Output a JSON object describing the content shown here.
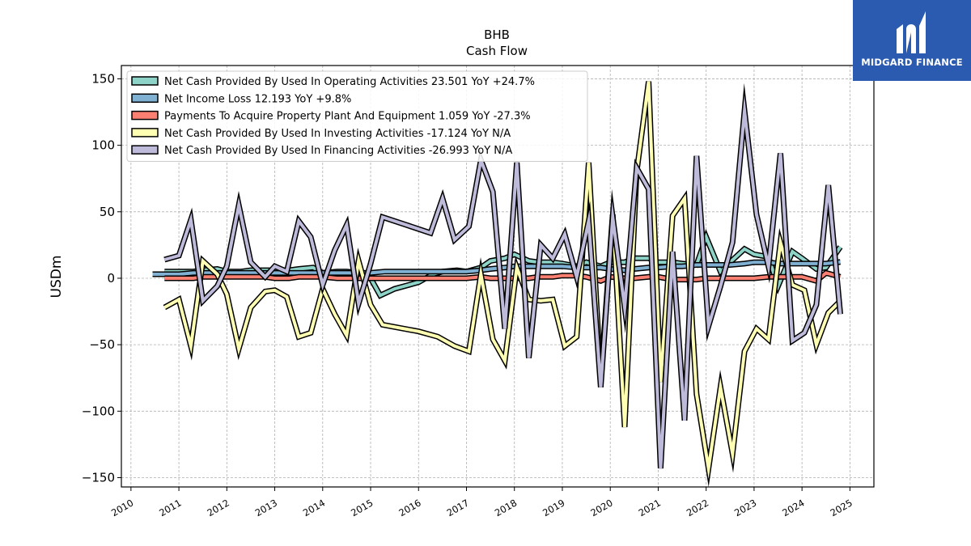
{
  "brand": {
    "name": "MIDGARD FINANCE",
    "bg_color": "#2b5bb0"
  },
  "chart_data": {
    "type": "line",
    "title": "BHB",
    "subtitle": "Cash Flow",
    "ylabel": "USDm",
    "xlabel": "",
    "xlim": [
      2009.8,
      2025.5
    ],
    "ylim": [
      -157,
      160
    ],
    "x_ticks": [
      2010,
      2011,
      2012,
      2013,
      2014,
      2015,
      2016,
      2017,
      2018,
      2019,
      2020,
      2021,
      2022,
      2023,
      2024,
      2025
    ],
    "y_ticks": [
      150,
      100,
      50,
      0,
      -50,
      -100,
      -150
    ],
    "y_tick_labels": [
      "150",
      "100",
      "50",
      "0",
      "−50",
      "−100",
      "−150"
    ],
    "grid": true,
    "legend_position": "top-left",
    "series": [
      {
        "name": "Net Cash Provided By Used In Operating Activities",
        "legend_label": "Net Cash Provided By Used In Operating Activities  23.501 YoY +24.7%",
        "color": "#8dd3c7",
        "points": [
          [
            2010.7,
            5
          ],
          [
            2011.0,
            5
          ],
          [
            2011.3,
            5
          ],
          [
            2011.5,
            6
          ],
          [
            2011.8,
            7
          ],
          [
            2012.0,
            5
          ],
          [
            2012.3,
            5
          ],
          [
            2012.5,
            6
          ],
          [
            2012.8,
            6
          ],
          [
            2013.0,
            6
          ],
          [
            2013.3,
            6
          ],
          [
            2013.5,
            7
          ],
          [
            2013.8,
            8
          ],
          [
            2014.0,
            4
          ],
          [
            2014.3,
            5
          ],
          [
            2014.5,
            5
          ],
          [
            2014.8,
            4
          ],
          [
            2015.0,
            0
          ],
          [
            2015.2,
            -13
          ],
          [
            2015.5,
            -8
          ],
          [
            2015.8,
            -5
          ],
          [
            2016.0,
            -3
          ],
          [
            2016.3,
            3
          ],
          [
            2016.5,
            5
          ],
          [
            2016.8,
            6
          ],
          [
            2017.0,
            5
          ],
          [
            2017.3,
            8
          ],
          [
            2017.5,
            13
          ],
          [
            2017.8,
            15
          ],
          [
            2018.0,
            18
          ],
          [
            2018.3,
            13
          ],
          [
            2018.5,
            12
          ],
          [
            2018.8,
            12
          ],
          [
            2019.0,
            11
          ],
          [
            2019.3,
            9
          ],
          [
            2019.5,
            12
          ],
          [
            2019.8,
            9
          ],
          [
            2020.0,
            12
          ],
          [
            2020.3,
            12
          ],
          [
            2020.5,
            15
          ],
          [
            2020.8,
            15
          ],
          [
            2021.0,
            12
          ],
          [
            2021.3,
            12
          ],
          [
            2021.5,
            11
          ],
          [
            2021.8,
            10
          ],
          [
            2022.0,
            31
          ],
          [
            2022.3,
            5
          ],
          [
            2022.5,
            12
          ],
          [
            2022.8,
            22
          ],
          [
            2023.0,
            18
          ],
          [
            2023.3,
            16
          ],
          [
            2023.5,
            -6
          ],
          [
            2023.8,
            20
          ],
          [
            2024.0,
            15
          ],
          [
            2024.3,
            7
          ],
          [
            2024.5,
            8
          ],
          [
            2024.8,
            23.5
          ]
        ]
      },
      {
        "name": "Net Income Loss",
        "legend_label": "Net Income Loss  12.193 YoY +9.8%",
        "color": "#80b1d3",
        "points": [
          [
            2010.45,
            3
          ],
          [
            2010.7,
            3
          ],
          [
            2011.0,
            3
          ],
          [
            2011.3,
            4
          ],
          [
            2011.5,
            4
          ],
          [
            2011.8,
            4
          ],
          [
            2012.0,
            4
          ],
          [
            2012.3,
            4
          ],
          [
            2012.5,
            4
          ],
          [
            2012.8,
            4
          ],
          [
            2013.0,
            4
          ],
          [
            2013.3,
            4
          ],
          [
            2013.5,
            4
          ],
          [
            2013.8,
            4
          ],
          [
            2014.0,
            4
          ],
          [
            2014.3,
            4
          ],
          [
            2014.5,
            4
          ],
          [
            2014.8,
            4
          ],
          [
            2015.0,
            4
          ],
          [
            2015.3,
            5
          ],
          [
            2015.5,
            5
          ],
          [
            2015.8,
            5
          ],
          [
            2016.0,
            5
          ],
          [
            2016.3,
            5
          ],
          [
            2016.5,
            5
          ],
          [
            2016.8,
            5
          ],
          [
            2017.0,
            5
          ],
          [
            2017.3,
            6
          ],
          [
            2017.5,
            7
          ],
          [
            2017.8,
            8
          ],
          [
            2018.0,
            9
          ],
          [
            2018.3,
            9
          ],
          [
            2018.5,
            9
          ],
          [
            2018.8,
            9
          ],
          [
            2019.0,
            9
          ],
          [
            2019.3,
            8
          ],
          [
            2019.5,
            8
          ],
          [
            2019.8,
            8
          ],
          [
            2020.0,
            7
          ],
          [
            2020.3,
            6
          ],
          [
            2020.5,
            7
          ],
          [
            2020.8,
            8
          ],
          [
            2021.0,
            8
          ],
          [
            2021.3,
            9
          ],
          [
            2021.5,
            9
          ],
          [
            2021.8,
            10
          ],
          [
            2022.0,
            10
          ],
          [
            2022.3,
            10
          ],
          [
            2022.5,
            10
          ],
          [
            2022.8,
            11
          ],
          [
            2023.0,
            12
          ],
          [
            2023.3,
            12
          ],
          [
            2023.5,
            11
          ],
          [
            2023.8,
            11
          ],
          [
            2024.0,
            11
          ],
          [
            2024.3,
            11
          ],
          [
            2024.5,
            11
          ],
          [
            2024.8,
            12.2
          ]
        ]
      },
      {
        "name": "Payments To Acquire Property Plant And Equipment",
        "legend_label": "Payments To Acquire Property Plant And Equipment  1.059 YoY -27.3%",
        "color": "#fb8072",
        "points": [
          [
            2010.7,
            0
          ],
          [
            2011.0,
            0
          ],
          [
            2011.3,
            0
          ],
          [
            2011.5,
            1
          ],
          [
            2011.8,
            1
          ],
          [
            2012.0,
            1
          ],
          [
            2012.3,
            1
          ],
          [
            2012.5,
            1
          ],
          [
            2012.8,
            1
          ],
          [
            2013.0,
            0
          ],
          [
            2013.3,
            0
          ],
          [
            2013.5,
            1
          ],
          [
            2013.8,
            1
          ],
          [
            2014.0,
            1
          ],
          [
            2014.3,
            0
          ],
          [
            2014.5,
            0
          ],
          [
            2014.8,
            0
          ],
          [
            2015.0,
            0
          ],
          [
            2015.3,
            0
          ],
          [
            2015.5,
            0
          ],
          [
            2015.8,
            0
          ],
          [
            2016.0,
            0
          ],
          [
            2016.3,
            0
          ],
          [
            2016.5,
            0
          ],
          [
            2016.8,
            0
          ],
          [
            2017.0,
            0
          ],
          [
            2017.3,
            1
          ],
          [
            2017.5,
            0
          ],
          [
            2017.8,
            0
          ],
          [
            2018.0,
            0
          ],
          [
            2018.3,
            0
          ],
          [
            2018.5,
            1
          ],
          [
            2018.8,
            1
          ],
          [
            2019.0,
            2
          ],
          [
            2019.3,
            2
          ],
          [
            2019.5,
            1
          ],
          [
            2019.8,
            -2
          ],
          [
            2020.0,
            1
          ],
          [
            2020.3,
            0
          ],
          [
            2020.5,
            0
          ],
          [
            2020.8,
            1
          ],
          [
            2021.0,
            1
          ],
          [
            2021.3,
            -1
          ],
          [
            2021.5,
            -1
          ],
          [
            2021.8,
            -1
          ],
          [
            2022.0,
            0
          ],
          [
            2022.3,
            0
          ],
          [
            2022.5,
            0
          ],
          [
            2022.8,
            0
          ],
          [
            2023.0,
            0
          ],
          [
            2023.3,
            1
          ],
          [
            2023.5,
            1
          ],
          [
            2023.8,
            1
          ],
          [
            2024.0,
            1
          ],
          [
            2024.3,
            -2
          ],
          [
            2024.5,
            4
          ],
          [
            2024.8,
            1.06
          ]
        ]
      },
      {
        "name": "Net Cash Provided By Used In Investing Activities",
        "legend_label": "Net Cash Provided By Used In Investing Activities  -17.124 YoY N/A",
        "color": "#ffffb3",
        "points": [
          [
            2010.7,
            -22
          ],
          [
            2011.0,
            -16
          ],
          [
            2011.25,
            -51
          ],
          [
            2011.5,
            13
          ],
          [
            2011.8,
            3
          ],
          [
            2012.0,
            -12
          ],
          [
            2012.25,
            -53
          ],
          [
            2012.5,
            -22
          ],
          [
            2012.8,
            -10
          ],
          [
            2013.0,
            -9
          ],
          [
            2013.25,
            -14
          ],
          [
            2013.5,
            -44
          ],
          [
            2013.75,
            -41
          ],
          [
            2014.0,
            -8
          ],
          [
            2014.25,
            -27
          ],
          [
            2014.5,
            -43
          ],
          [
            2014.75,
            13
          ],
          [
            2015.0,
            -20
          ],
          [
            2015.25,
            -35
          ],
          [
            2016.0,
            -40
          ],
          [
            2016.4,
            -44
          ],
          [
            2016.75,
            -51
          ],
          [
            2017.05,
            -55
          ],
          [
            2017.3,
            3
          ],
          [
            2017.55,
            -46
          ],
          [
            2017.8,
            -62
          ],
          [
            2018.05,
            8
          ],
          [
            2018.3,
            -16
          ],
          [
            2018.55,
            -17
          ],
          [
            2018.8,
            -16
          ],
          [
            2019.05,
            -51
          ],
          [
            2019.3,
            -44
          ],
          [
            2019.55,
            87
          ],
          [
            2019.8,
            -76
          ],
          [
            2020.05,
            48
          ],
          [
            2020.3,
            -112
          ],
          [
            2020.55,
            80
          ],
          [
            2020.8,
            148
          ],
          [
            2021.05,
            -78
          ],
          [
            2021.3,
            47
          ],
          [
            2021.55,
            60
          ],
          [
            2021.8,
            -87
          ],
          [
            2022.05,
            -143
          ],
          [
            2022.3,
            -82
          ],
          [
            2022.55,
            -132
          ],
          [
            2022.8,
            -55
          ],
          [
            2023.05,
            -38
          ],
          [
            2023.3,
            -46
          ],
          [
            2023.55,
            27
          ],
          [
            2023.8,
            -5
          ],
          [
            2024.05,
            -9
          ],
          [
            2024.3,
            -50
          ],
          [
            2024.55,
            -26
          ],
          [
            2024.8,
            -17.1
          ]
        ]
      },
      {
        "name": "Net Cash Provided By Used In Financing Activities",
        "legend_label": "Net Cash Provided By Used In Financing Activities  -26.993 YoY N/A",
        "color": "#bebada",
        "points": [
          [
            2010.7,
            14
          ],
          [
            2011.0,
            17
          ],
          [
            2011.25,
            44
          ],
          [
            2011.5,
            -17
          ],
          [
            2011.8,
            -6
          ],
          [
            2012.0,
            9
          ],
          [
            2012.25,
            55
          ],
          [
            2012.5,
            12
          ],
          [
            2012.8,
            1
          ],
          [
            2013.0,
            9
          ],
          [
            2013.25,
            5
          ],
          [
            2013.5,
            43
          ],
          [
            2013.75,
            31
          ],
          [
            2014.0,
            -5
          ],
          [
            2014.25,
            21
          ],
          [
            2014.5,
            40
          ],
          [
            2014.75,
            -19
          ],
          [
            2015.0,
            11
          ],
          [
            2015.25,
            46
          ],
          [
            2015.75,
            40
          ],
          [
            2016.25,
            34
          ],
          [
            2016.5,
            60
          ],
          [
            2016.75,
            29
          ],
          [
            2017.05,
            39
          ],
          [
            2017.3,
            89
          ],
          [
            2017.55,
            65
          ],
          [
            2017.8,
            -38
          ],
          [
            2018.05,
            87
          ],
          [
            2018.3,
            -60
          ],
          [
            2018.55,
            25
          ],
          [
            2018.8,
            15
          ],
          [
            2019.05,
            33
          ],
          [
            2019.3,
            1
          ],
          [
            2019.55,
            43
          ],
          [
            2019.8,
            -82
          ],
          [
            2020.05,
            46
          ],
          [
            2020.3,
            -22
          ],
          [
            2020.55,
            83
          ],
          [
            2020.8,
            67
          ],
          [
            2021.05,
            -143
          ],
          [
            2021.3,
            20
          ],
          [
            2021.55,
            -107
          ],
          [
            2021.8,
            92
          ],
          [
            2022.05,
            -36
          ],
          [
            2022.3,
            -6
          ],
          [
            2022.55,
            27
          ],
          [
            2022.8,
            126
          ],
          [
            2023.05,
            48
          ],
          [
            2023.3,
            9
          ],
          [
            2023.55,
            94
          ],
          [
            2023.8,
            -47
          ],
          [
            2024.05,
            -41
          ],
          [
            2024.3,
            -20
          ],
          [
            2024.55,
            70
          ],
          [
            2024.8,
            -27.0
          ]
        ]
      }
    ]
  }
}
